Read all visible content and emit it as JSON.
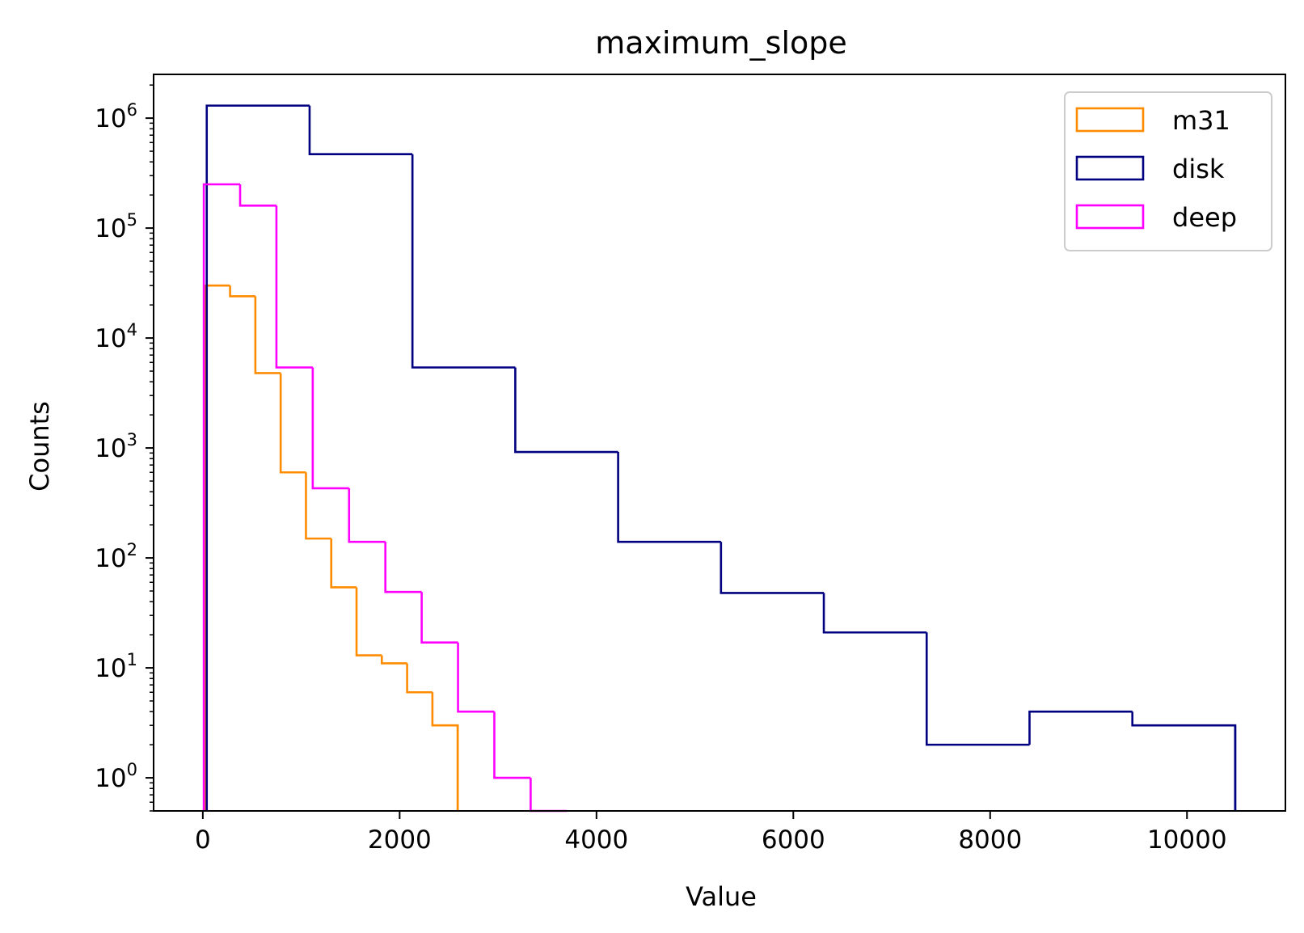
{
  "chart_data": {
    "type": "histogram",
    "title": "maximum_slope",
    "xlabel": "Value",
    "ylabel": "Counts",
    "xlim": [
      -500,
      11000
    ],
    "ylim": [
      0.5,
      2500000
    ],
    "yscale": "log",
    "xticks": [
      0,
      2000,
      4000,
      6000,
      8000,
      10000
    ],
    "xtick_labels": [
      "0",
      "2000",
      "4000",
      "6000",
      "8000",
      "10000"
    ],
    "yticks": [
      1,
      10,
      100,
      1000,
      10000,
      100000,
      1000000
    ],
    "ytick_labels": [
      {
        "base": "10",
        "exp": "0"
      },
      {
        "base": "10",
        "exp": "1"
      },
      {
        "base": "10",
        "exp": "2"
      },
      {
        "base": "10",
        "exp": "3"
      },
      {
        "base": "10",
        "exp": "4"
      },
      {
        "base": "10",
        "exp": "5"
      },
      {
        "base": "10",
        "exp": "6"
      }
    ],
    "grid": false,
    "legend_position": "top-right",
    "histtype": "step",
    "series": [
      {
        "name": "m31",
        "color": "#ff8c00",
        "bin_edges": [
          20,
          277,
          534,
          791,
          1048,
          1305,
          1562,
          1819,
          2076,
          2333,
          2590
        ],
        "counts": [
          30000,
          24000,
          4800,
          600,
          150,
          54,
          13,
          11,
          6,
          3
        ]
      },
      {
        "name": "disk",
        "color": "#000080",
        "bin_edges": [
          40,
          1085,
          2130,
          3175,
          4220,
          5265,
          6310,
          7355,
          8400,
          9445,
          10490
        ],
        "counts": [
          1300000,
          470000,
          5400,
          920,
          140,
          48,
          21,
          2,
          4,
          3
        ]
      },
      {
        "name": "deep",
        "color": "#ff00ff",
        "bin_edges": [
          10,
          379,
          748,
          1117,
          1486,
          1855,
          2224,
          2593,
          2962,
          3331,
          3700
        ],
        "counts": [
          250000,
          160000,
          5400,
          430,
          140,
          49,
          17,
          4,
          1,
          0
        ]
      }
    ]
  }
}
